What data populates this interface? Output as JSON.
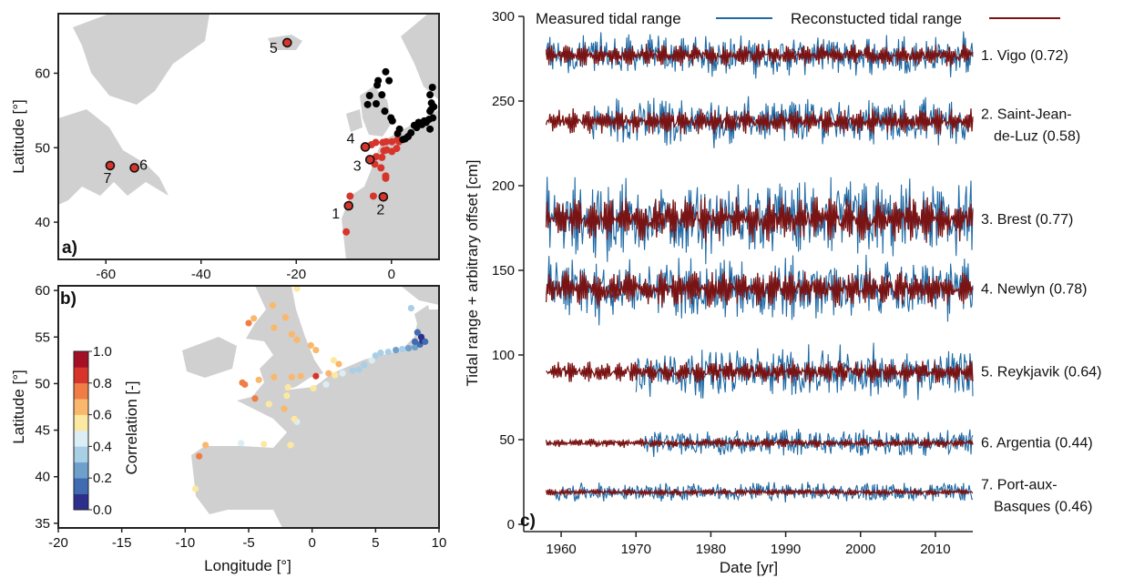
{
  "panels": {
    "a": {
      "label": "a)",
      "ylabel": "Latitude [°]",
      "x_ticks": [
        "-60",
        "-40",
        "-20",
        "0"
      ],
      "y_ticks": [
        "40",
        "50",
        "60"
      ]
    },
    "b": {
      "label": "b)",
      "xlabel": "Longitude [°]",
      "ylabel": "Latitude [°]",
      "x_ticks": [
        "-20",
        "-15",
        "-10",
        "-5",
        "0",
        "5",
        "10"
      ],
      "y_ticks": [
        "35",
        "40",
        "45",
        "50",
        "55",
        "60"
      ],
      "colorbar": {
        "label": "Correlation [-]",
        "ticks": [
          "0.0",
          "0.2",
          "0.4",
          "0.6",
          "0.8",
          "1.0"
        ],
        "colors": [
          "#2c2f8c",
          "#3f6bb0",
          "#6fa0cc",
          "#a8cfe5",
          "#dceef5",
          "#fde8a2",
          "#f9b86c",
          "#ef7d45",
          "#d7352b",
          "#a50f26"
        ]
      }
    },
    "c": {
      "label": "c)",
      "xlabel": "Date [yr]",
      "ylabel": "Tidal range + arbitrary offset [cm]",
      "x_ticks": [
        "1960",
        "1970",
        "1980",
        "1990",
        "2000",
        "2010"
      ],
      "y_ticks": [
        "0",
        "50",
        "100",
        "150",
        "200",
        "250",
        "300"
      ],
      "legend": {
        "measured": "Measured tidal range",
        "reconstructed": "Reconstucted tidal range"
      }
    }
  },
  "chart_data": [
    {
      "type": "scatter",
      "panel": "a",
      "xlim": [
        -70,
        10
      ],
      "ylim": [
        35,
        68
      ],
      "ylabel": "Latitude [°]",
      "numbered_stations": [
        {
          "id": "1",
          "lon": -9.0,
          "lat": 42.2
        },
        {
          "id": "2",
          "lon": -1.7,
          "lat": 43.4
        },
        {
          "id": "3",
          "lon": -4.5,
          "lat": 48.4
        },
        {
          "id": "4",
          "lon": -5.5,
          "lat": 50.1
        },
        {
          "id": "5",
          "lon": -21.9,
          "lat": 64.1
        },
        {
          "id": "6",
          "lon": -54.0,
          "lat": 47.3
        },
        {
          "id": "7",
          "lon": -59.1,
          "lat": 47.6
        }
      ],
      "series": [
        {
          "color": "#d7352b",
          "points": [
            [
              -9.5,
              38.7
            ],
            [
              -8.7,
              43.5
            ],
            [
              -8.9,
              42.2
            ],
            [
              -3.8,
              43.5
            ],
            [
              -1.7,
              43.4
            ],
            [
              -1.2,
              45.9
            ],
            [
              -1.2,
              46.2
            ],
            [
              -2.2,
              47.3
            ],
            [
              -3.5,
              47.8
            ],
            [
              -4.5,
              48.4
            ],
            [
              -3.2,
              48.8
            ],
            [
              -2.0,
              48.7
            ],
            [
              -1.6,
              49.6
            ],
            [
              -1.0,
              49.7
            ],
            [
              0.1,
              49.5
            ],
            [
              1.1,
              49.9
            ],
            [
              1.6,
              50.8
            ],
            [
              -5.5,
              50.1
            ],
            [
              -4.2,
              50.4
            ],
            [
              -3.3,
              50.7
            ],
            [
              -1.8,
              50.7
            ],
            [
              -1.1,
              50.8
            ],
            [
              0.1,
              50.8
            ],
            [
              1.3,
              51.1
            ]
          ]
        },
        {
          "color": "#000000",
          "points": [
            [
              -5.0,
              55.8
            ],
            [
              -3.2,
              55.9
            ],
            [
              -4.6,
              57.0
            ],
            [
              -3.0,
              58.4
            ],
            [
              -1.2,
              60.2
            ],
            [
              -2.0,
              57.1
            ],
            [
              -1.4,
              54.9
            ],
            [
              -0.1,
              54.0
            ],
            [
              0.2,
              53.6
            ],
            [
              1.7,
              52.5
            ],
            [
              1.3,
              51.9
            ],
            [
              2.9,
              51.2
            ],
            [
              4.1,
              52.0
            ],
            [
              4.8,
              53.0
            ],
            [
              5.7,
              53.4
            ],
            [
              6.9,
              53.6
            ],
            [
              7.9,
              53.8
            ],
            [
              8.7,
              54.0
            ],
            [
              8.3,
              55.1
            ],
            [
              8.4,
              56.0
            ],
            [
              8.1,
              57.1
            ],
            [
              8.6,
              58.1
            ],
            [
              8.9,
              55.5
            ],
            [
              8.1,
              54.9
            ],
            [
              7.3,
              53.4
            ],
            [
              6.4,
              53.1
            ],
            [
              5.3,
              52.7
            ],
            [
              3.5,
              51.5
            ],
            [
              2.4,
              51.1
            ],
            [
              8.1,
              52.5
            ],
            [
              -0.5,
              59.0
            ],
            [
              -2.8,
              59.0
            ]
          ]
        }
      ]
    },
    {
      "type": "scatter",
      "panel": "b",
      "xlim": [
        -20,
        10
      ],
      "ylim": [
        34.5,
        60.5
      ],
      "xlabel": "Longitude [°]",
      "ylabel": "Latitude [°]",
      "colorbar": {
        "label": "Correlation [-]",
        "range": [
          0.0,
          1.0
        ]
      },
      "points": [
        {
          "lon": -9.2,
          "lat": 38.7,
          "corr": 0.55
        },
        {
          "lon": -8.9,
          "lat": 42.2,
          "corr": 0.72
        },
        {
          "lon": -8.4,
          "lat": 43.4,
          "corr": 0.65
        },
        {
          "lon": -5.6,
          "lat": 43.6,
          "corr": 0.4
        },
        {
          "lon": -3.8,
          "lat": 43.5,
          "corr": 0.55
        },
        {
          "lon": -1.7,
          "lat": 43.4,
          "corr": 0.58
        },
        {
          "lon": -1.2,
          "lat": 45.9,
          "corr": 0.42
        },
        {
          "lon": -1.4,
          "lat": 46.2,
          "corr": 0.55
        },
        {
          "lon": -2.2,
          "lat": 47.3,
          "corr": 0.62
        },
        {
          "lon": -3.4,
          "lat": 47.8,
          "corr": 0.5
        },
        {
          "lon": -4.5,
          "lat": 48.4,
          "corr": 0.77
        },
        {
          "lon": -5.3,
          "lat": 49.9,
          "corr": 0.72
        },
        {
          "lon": -5.5,
          "lat": 50.1,
          "corr": 0.78
        },
        {
          "lon": -4.2,
          "lat": 50.4,
          "corr": 0.6
        },
        {
          "lon": -3.0,
          "lat": 50.7,
          "corr": 0.62
        },
        {
          "lon": -1.9,
          "lat": 49.6,
          "corr": 0.58
        },
        {
          "lon": -1.6,
          "lat": 50.7,
          "corr": 0.66
        },
        {
          "lon": -0.9,
          "lat": 50.8,
          "corr": 0.6
        },
        {
          "lon": -2.0,
          "lat": 48.7,
          "corr": 0.5
        },
        {
          "lon": 0.1,
          "lat": 49.5,
          "corr": 0.55
        },
        {
          "lon": 0.3,
          "lat": 50.8,
          "corr": 0.8
        },
        {
          "lon": 1.1,
          "lat": 49.9,
          "corr": 0.48
        },
        {
          "lon": 1.3,
          "lat": 51.1,
          "corr": 0.68
        },
        {
          "lon": 1.8,
          "lat": 50.9,
          "corr": 0.55
        },
        {
          "lon": 2.4,
          "lat": 51.1,
          "corr": 0.4
        },
        {
          "lon": 3.2,
          "lat": 51.4,
          "corr": 0.38
        },
        {
          "lon": 3.7,
          "lat": 51.5,
          "corr": 0.35
        },
        {
          "lon": 4.1,
          "lat": 52.0,
          "corr": 0.3
        },
        {
          "lon": 4.7,
          "lat": 52.5,
          "corr": 0.42
        },
        {
          "lon": 5.0,
          "lat": 53.0,
          "corr": 0.3
        },
        {
          "lon": 5.4,
          "lat": 53.3,
          "corr": 0.38
        },
        {
          "lon": 6.0,
          "lat": 53.4,
          "corr": 0.32
        },
        {
          "lon": 6.6,
          "lat": 53.6,
          "corr": 0.28
        },
        {
          "lon": 7.1,
          "lat": 53.7,
          "corr": 0.3
        },
        {
          "lon": 7.6,
          "lat": 53.8,
          "corr": 0.25
        },
        {
          "lon": 8.1,
          "lat": 53.9,
          "corr": 0.2
        },
        {
          "lon": 8.5,
          "lat": 54.2,
          "corr": 0.1
        },
        {
          "lon": 8.7,
          "lat": 54.6,
          "corr": 0.05
        },
        {
          "lon": 8.6,
          "lat": 55.0,
          "corr": 0.08
        },
        {
          "lon": 8.3,
          "lat": 55.5,
          "corr": 0.12
        },
        {
          "lon": 8.1,
          "lat": 54.5,
          "corr": 0.15
        },
        {
          "lon": 8.9,
          "lat": 54.5,
          "corr": 0.18
        },
        {
          "lon": 2.1,
          "lat": 52.1,
          "corr": 0.62
        },
        {
          "lon": 1.7,
          "lat": 52.5,
          "corr": 0.58
        },
        {
          "lon": 0.3,
          "lat": 53.6,
          "corr": 0.62
        },
        {
          "lon": -0.1,
          "lat": 54.1,
          "corr": 0.68
        },
        {
          "lon": -1.2,
          "lat": 54.7,
          "corr": 0.65
        },
        {
          "lon": -1.6,
          "lat": 55.3,
          "corr": 0.62
        },
        {
          "lon": -3.0,
          "lat": 56.0,
          "corr": 0.66
        },
        {
          "lon": -2.1,
          "lat": 57.1,
          "corr": 0.63
        },
        {
          "lon": -3.1,
          "lat": 58.4,
          "corr": 0.63
        },
        {
          "lon": -5.0,
          "lat": 56.5,
          "corr": 0.7
        },
        {
          "lon": -4.6,
          "lat": 57.0,
          "corr": 0.68
        },
        {
          "lon": -1.2,
          "lat": 60.2,
          "corr": 0.58
        },
        {
          "lon": 7.8,
          "lat": 58.1,
          "corr": 0.32
        }
      ]
    },
    {
      "type": "line",
      "panel": "c",
      "xlim": [
        1955,
        2015
      ],
      "ylim": [
        0,
        300
      ],
      "xlabel": "Date [yr]",
      "ylabel": "Tidal range + arbitrary offset [cm]",
      "series": [
        {
          "name": "Measured tidal range",
          "color": "#1f6aa5"
        },
        {
          "name": "Reconstucted tidal range",
          "color": "#7a1313"
        }
      ],
      "stations": [
        {
          "label": "1. Vigo (0.72)",
          "lines": [
            "1. Vigo (0.72)"
          ],
          "offset": 277,
          "rec_amp": 7,
          "meas_amp": 9,
          "meas_start": 1958
        },
        {
          "label": "2. Saint-Jean-de-Luz (0.58)",
          "lines": [
            "2. Saint-Jean-",
            "de-Luz (0.58)"
          ],
          "offset": 238,
          "rec_amp": 8,
          "meas_amp": 10,
          "meas_start": 1964
        },
        {
          "label": "3. Brest (0.77)",
          "lines": [
            "3. Brest (0.77)"
          ],
          "offset": 180,
          "rec_amp": 14,
          "meas_amp": 17,
          "meas_start": 1958
        },
        {
          "label": "4. Newlyn (0.78)",
          "lines": [
            "4. Newlyn (0.78)"
          ],
          "offset": 139,
          "rec_amp": 11,
          "meas_amp": 13,
          "meas_start": 1958
        },
        {
          "label": "5. Reykjavik (0.64)",
          "lines": [
            "5. Reykjavik (0.64)"
          ],
          "offset": 90,
          "rec_amp": 7,
          "meas_amp": 12,
          "meas_start": 1970
        },
        {
          "label": "6. Argentia (0.44)",
          "lines": [
            "6. Argentia (0.44)"
          ],
          "offset": 48,
          "rec_amp": 3,
          "meas_amp": 7,
          "meas_start": 1971
        },
        {
          "label": "7. Port-aux-Basques (0.46)",
          "lines": [
            "7. Port-aux-",
            "Basques (0.46)"
          ],
          "offset": 19,
          "rec_amp": 2,
          "meas_amp": 5,
          "meas_start": 1959
        }
      ]
    }
  ]
}
